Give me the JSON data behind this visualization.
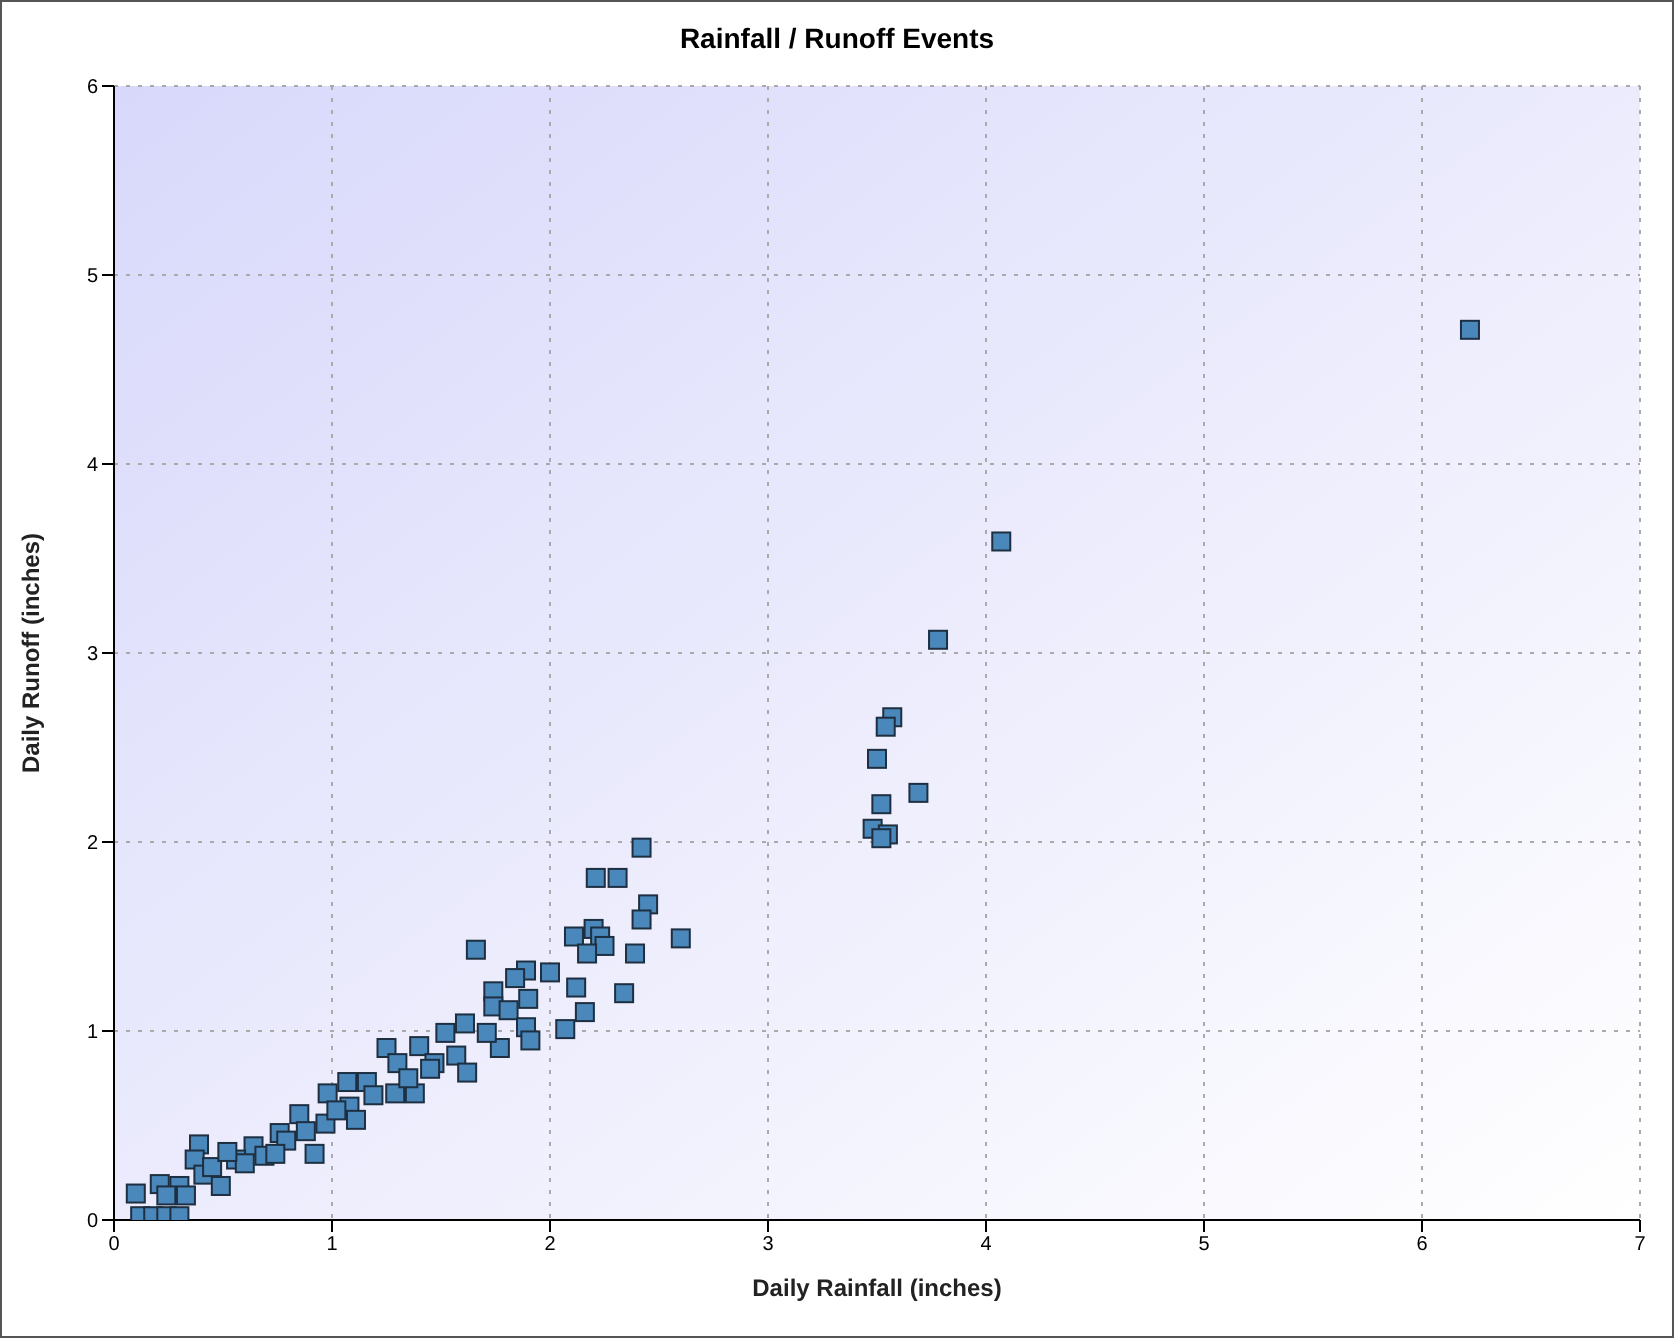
{
  "chart_data": {
    "type": "scatter",
    "title": "Rainfall / Runoff Events",
    "xlabel": "Daily Rainfall (inches)",
    "ylabel": "Daily Runoff (inches)",
    "x": [
      6.22,
      4.07,
      3.78,
      3.57,
      3.54,
      3.5,
      3.69,
      3.52,
      3.48,
      3.55,
      3.52,
      2.42,
      2.21,
      2.31,
      2.45,
      2.42,
      2.6,
      2.11,
      2.2,
      2.23,
      2.25,
      2.17,
      2.39,
      1.66,
      2.0,
      2.12,
      2.34,
      2.16,
      2.07,
      1.89,
      1.84,
      1.74,
      1.9,
      1.74,
      1.81,
      1.89,
      1.91,
      1.77,
      1.71,
      1.61,
      1.52,
      1.25,
      1.4,
      1.57,
      1.62,
      1.47,
      1.3,
      1.07,
      0.98,
      1.16,
      1.19,
      1.08,
      1.29,
      1.38,
      0.85,
      0.97,
      1.11,
      0.76,
      0.64,
      0.56,
      0.39,
      0.37,
      0.41,
      0.3,
      0.21,
      0.1,
      0.24,
      0.12,
      0.18,
      0.24,
      0.3,
      0.49,
      0.69,
      0.92,
      0.79,
      0.74,
      0.45,
      0.6,
      0.88,
      1.02,
      1.35,
      1.45,
      0.52,
      0.33
    ],
    "series": [
      {
        "color": "#4a87bb",
        "values": [
          4.71,
          3.59,
          3.07,
          2.66,
          2.61,
          2.44,
          2.26,
          2.2,
          2.07,
          2.04,
          2.02,
          1.97,
          1.81,
          1.81,
          1.67,
          1.59,
          1.49,
          1.5,
          1.54,
          1.5,
          1.45,
          1.41,
          1.41,
          1.43,
          1.31,
          1.23,
          1.2,
          1.1,
          1.01,
          1.32,
          1.28,
          1.21,
          1.17,
          1.13,
          1.11,
          1.02,
          0.95,
          0.91,
          0.99,
          1.04,
          0.99,
          0.91,
          0.92,
          0.87,
          0.78,
          0.83,
          0.83,
          0.73,
          0.67,
          0.73,
          0.66,
          0.6,
          0.67,
          0.67,
          0.56,
          0.51,
          0.53,
          0.46,
          0.39,
          0.32,
          0.4,
          0.32,
          0.24,
          0.18,
          0.19,
          0.14,
          0.13,
          0.02,
          0.02,
          0.02,
          0.02,
          0.18,
          0.34,
          0.35,
          0.42,
          0.35,
          0.28,
          0.3,
          0.47,
          0.58,
          0.75,
          0.8,
          0.36,
          0.13
        ]
      }
    ],
    "xlim": [
      0,
      7
    ],
    "xticks": [
      0,
      1,
      2,
      3,
      4,
      5,
      6,
      7
    ],
    "ylim": [
      0,
      6
    ],
    "yticks": [
      0,
      1,
      2,
      3,
      4,
      5,
      6
    ],
    "grid": true,
    "marker": "square"
  }
}
